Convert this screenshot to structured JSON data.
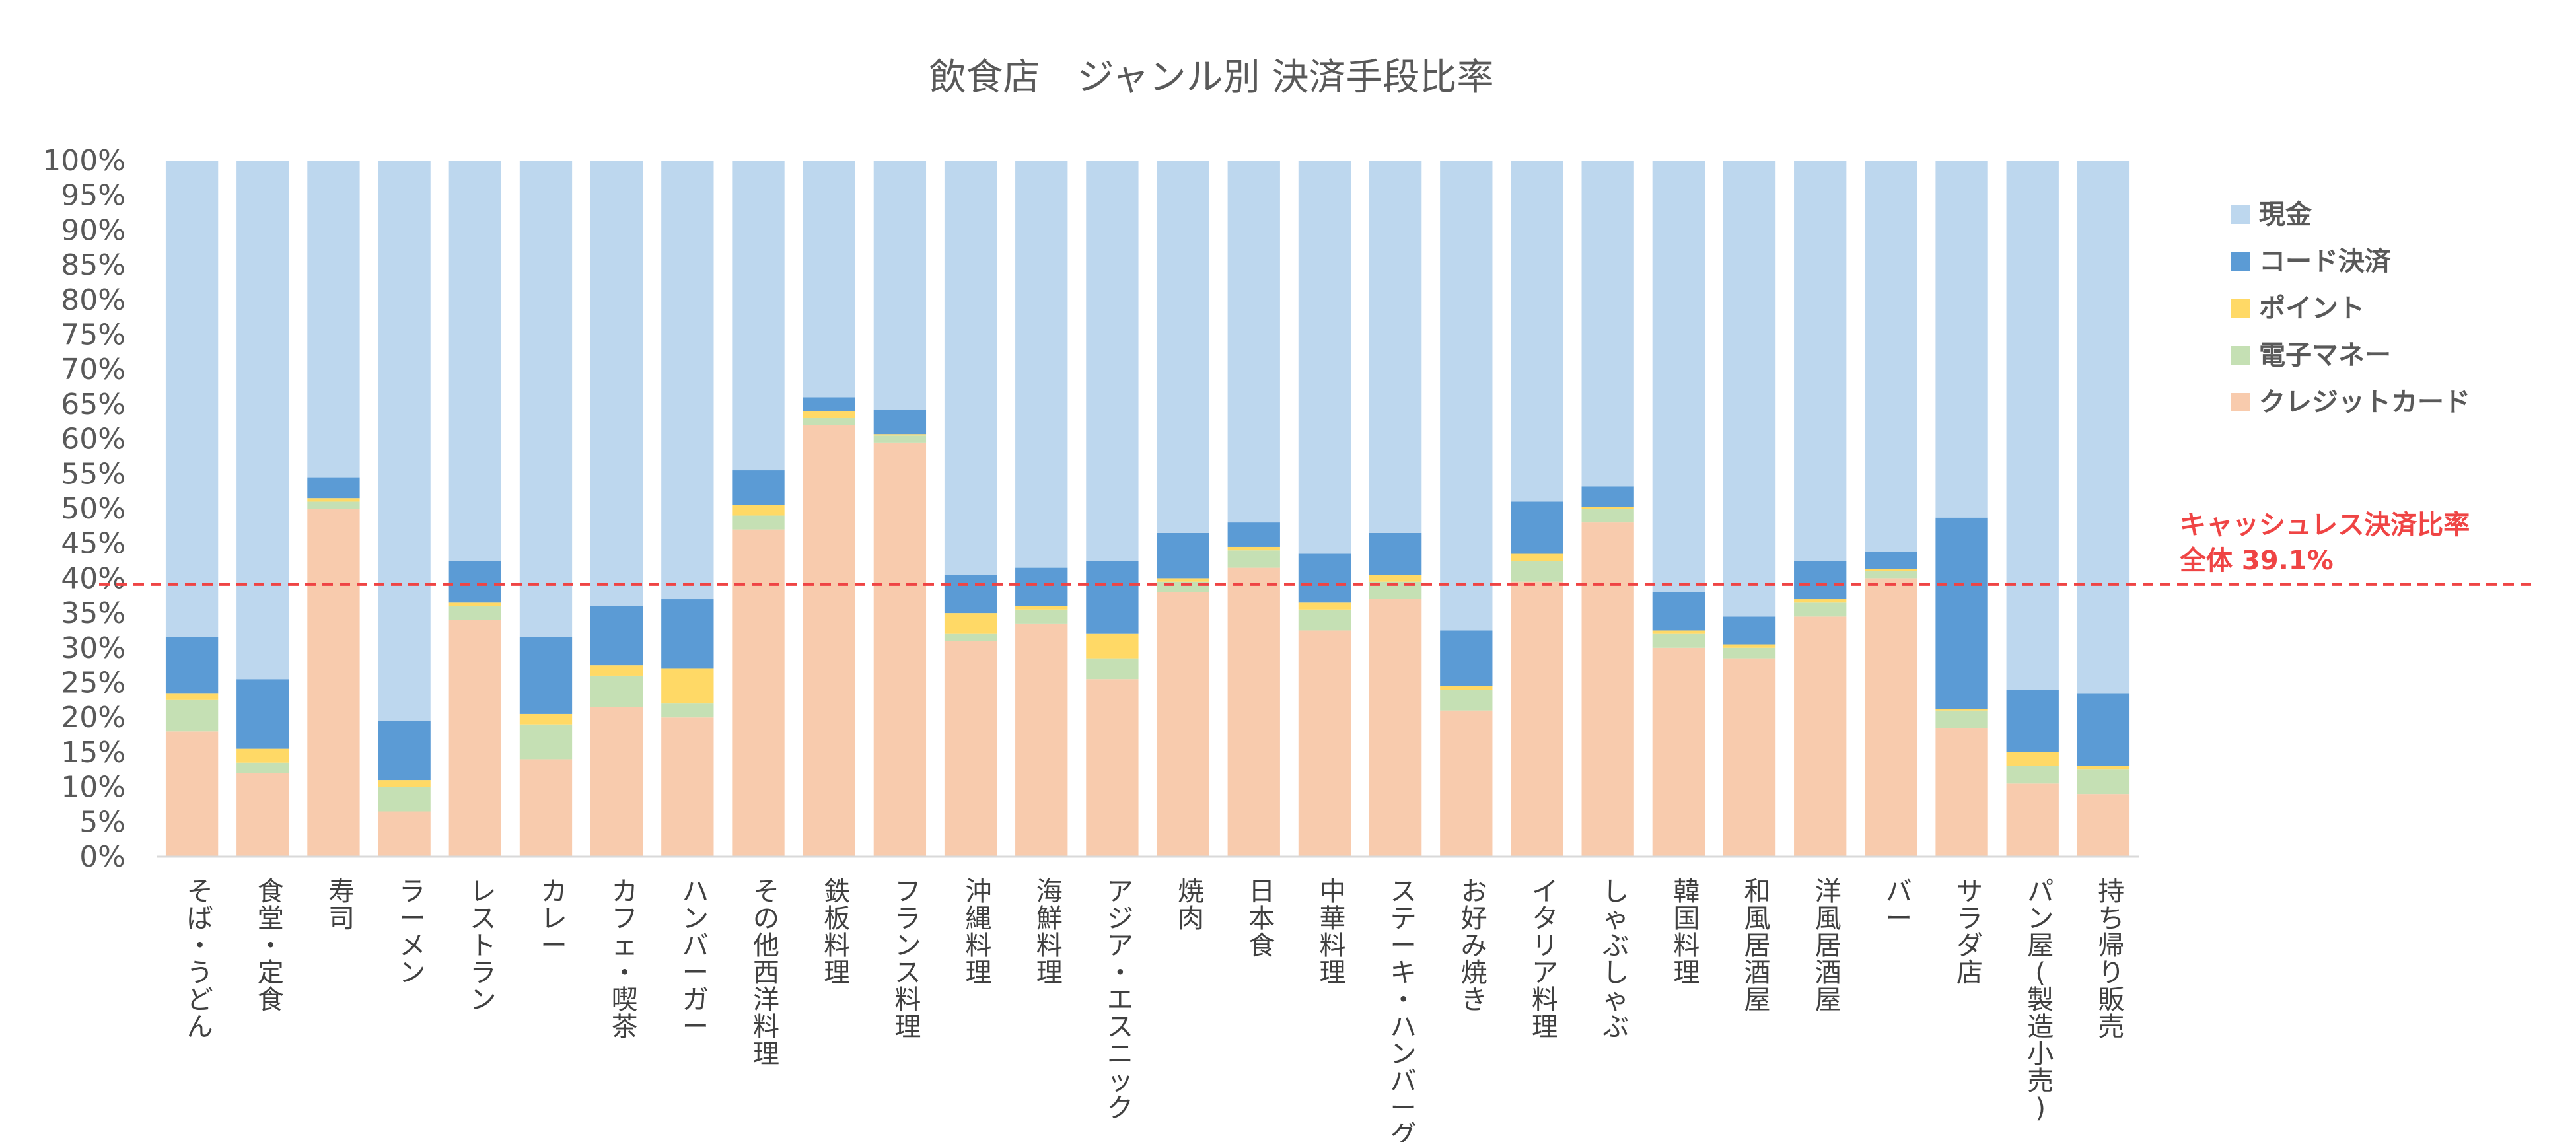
{
  "chart_data": {
    "type": "bar",
    "stacked": true,
    "title": "飲食店　ジャンル別 決済手段比率",
    "ylim": [
      0,
      100
    ],
    "yticks": [
      "0%",
      "5%",
      "10%",
      "15%",
      "20%",
      "25%",
      "30%",
      "35%",
      "40%",
      "45%",
      "50%",
      "55%",
      "60%",
      "65%",
      "70%",
      "75%",
      "80%",
      "85%",
      "90%",
      "95%",
      "100%"
    ],
    "categories": [
      "そば・うどん",
      "食堂・定食",
      "寿司",
      "ラーメン",
      "レストラン",
      "カレー",
      "カフェ・喫茶",
      "ハンバーガー",
      "その他西洋料理",
      "鉄板料理",
      "フランス料理",
      "沖縄料理",
      "海鮮料理",
      "アジア・エスニック",
      "焼肉",
      "日本食",
      "中華料理",
      "ステーキ・ハンバーグ",
      "お好み焼き",
      "イタリア料理",
      "しゃぶしゃぶ",
      "韓国料理",
      "和風居酒屋",
      "洋風居酒屋",
      "バー",
      "サラダ店",
      "パン屋(製造小売)",
      "持ち帰り販売"
    ],
    "series": [
      {
        "name": "クレジットカード",
        "color": "#F8CBAD",
        "values": [
          18,
          12,
          50,
          6.5,
          34,
          14,
          21.5,
          20,
          47,
          62,
          59.5,
          31,
          33.5,
          25.5,
          38,
          41.5,
          32.5,
          37,
          21,
          39.5,
          48,
          30,
          28.5,
          34.5,
          40,
          18.5,
          10.5,
          9
        ]
      },
      {
        "name": "電子マネー",
        "color": "#C5E0B4",
        "values": [
          4.5,
          1.5,
          1,
          3.5,
          2,
          5,
          4.5,
          2,
          2,
          1,
          1,
          1,
          2,
          3,
          1.5,
          2.5,
          3,
          2.5,
          3,
          3,
          2,
          2,
          1.5,
          2,
          1,
          2.5,
          2.5,
          3.5
        ]
      },
      {
        "name": "ポイント",
        "color": "#FFD966",
        "values": [
          1,
          2,
          0.5,
          1,
          0.5,
          1.5,
          1.5,
          5,
          1.5,
          1,
          0.2,
          3,
          0.5,
          3.5,
          0.5,
          0.5,
          1,
          1,
          0.5,
          1,
          0.2,
          0.5,
          0.5,
          0.5,
          0.3,
          0.2,
          2,
          0.5
        ]
      },
      {
        "name": "コード決済",
        "color": "#5B9BD5",
        "values": [
          8,
          10,
          3,
          8.5,
          6,
          11,
          8.5,
          10,
          5,
          2,
          3.5,
          5.5,
          5.5,
          10.5,
          6.5,
          3.5,
          7,
          6,
          8,
          7.5,
          3,
          5.5,
          4,
          5.5,
          2.5,
          27.5,
          9,
          10.5
        ]
      },
      {
        "name": "現金",
        "color": "#BDD7EE",
        "values": [
          68.5,
          74.5,
          45.5,
          80.5,
          57.5,
          68.5,
          64,
          63,
          44.5,
          34,
          35.8,
          59.5,
          58.5,
          57.5,
          53.5,
          52,
          56.5,
          53.5,
          67.5,
          49,
          46.8,
          62,
          65.5,
          57.5,
          56.2,
          51.3,
          76,
          76.5
        ]
      }
    ],
    "legend": [
      "現金",
      "コード決済",
      "ポイント",
      "電子マネー",
      "クレジットカード"
    ],
    "reference_line": {
      "value": 39.1,
      "color": "#ef4444",
      "label_line1": "キャッシュレス決済比率",
      "label_line2": "全体 39.1%"
    }
  }
}
